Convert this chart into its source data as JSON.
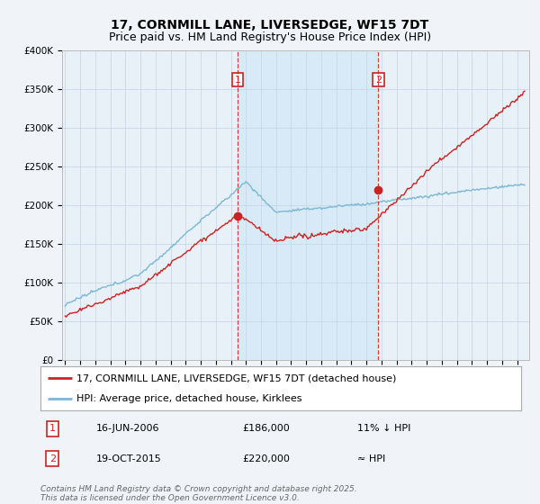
{
  "title": "17, CORNMILL LANE, LIVERSEDGE, WF15 7DT",
  "subtitle": "Price paid vs. HM Land Registry's House Price Index (HPI)",
  "ylim": [
    0,
    400000
  ],
  "yticks": [
    0,
    50000,
    100000,
    150000,
    200000,
    250000,
    300000,
    350000,
    400000
  ],
  "ytick_labels": [
    "£0",
    "£50K",
    "£100K",
    "£150K",
    "£200K",
    "£250K",
    "£300K",
    "£350K",
    "£400K"
  ],
  "xlim_start": 1994.8,
  "xlim_end": 2025.8,
  "sale1_x": 2006.45,
  "sale1_y": 186000,
  "sale2_x": 2015.79,
  "sale2_y": 220000,
  "hpi_color": "#7bb8d4",
  "price_color": "#cc2222",
  "vline_color": "#cc2222",
  "shade_color": "#d0e8f5",
  "background_color": "#f0f4f8",
  "plot_bg_color": "#e8f0f8",
  "grid_color": "#c8d8e8",
  "legend1_text": "17, CORNMILL LANE, LIVERSEDGE, WF15 7DT (detached house)",
  "legend2_text": "HPI: Average price, detached house, Kirklees",
  "footer": "Contains HM Land Registry data © Crown copyright and database right 2025.\nThis data is licensed under the Open Government Licence v3.0.",
  "title_fontsize": 10,
  "subtitle_fontsize": 9,
  "tick_fontsize": 7.5,
  "legend_fontsize": 8,
  "annot_fontsize": 8,
  "footer_fontsize": 6.5
}
